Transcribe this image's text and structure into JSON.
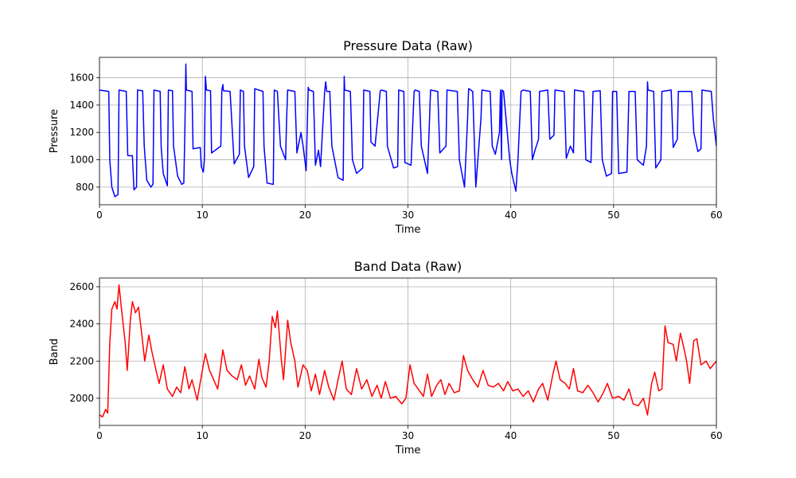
{
  "chart_data": [
    {
      "type": "line",
      "title": "Pressure Data (Raw)",
      "xlabel": "Time",
      "ylabel": "Pressure",
      "color": "#0000ff",
      "grid": true,
      "xlim": [
        0,
        60
      ],
      "ylim": [
        671,
        1749
      ],
      "xticks": [
        0,
        10,
        20,
        30,
        40,
        50,
        60
      ],
      "yticks": [
        800,
        1000,
        1200,
        1400,
        1600
      ],
      "x": [
        0,
        0.9,
        1.0,
        1.2,
        1.5,
        1.8,
        1.9,
        2.6,
        2.75,
        3.2,
        3.35,
        3.6,
        3.7,
        4.2,
        4.35,
        4.6,
        5.0,
        5.2,
        5.3,
        5.9,
        6.0,
        6.2,
        6.6,
        6.7,
        7.1,
        7.2,
        7.6,
        8.0,
        8.2,
        8.3,
        8.4,
        8.45,
        9.0,
        9.1,
        9.8,
        9.9,
        10.1,
        10.2,
        10.3,
        10.4,
        10.8,
        10.9,
        11.8,
        11.9,
        12.0,
        12.05,
        12.7,
        13.1,
        13.6,
        13.7,
        14.0,
        14.1,
        14.5,
        15.0,
        15.1,
        15.9,
        16.0,
        16.3,
        16.9,
        17.0,
        17.3,
        17.6,
        18.1,
        18.2,
        18.3,
        19.0,
        19.2,
        19.6,
        19.8,
        20.1,
        20.3,
        20.4,
        20.8,
        21.0,
        21.3,
        21.5,
        21.9,
        22.0,
        22.1,
        22.4,
        22.6,
        23.2,
        23.7,
        23.8,
        23.85,
        24.4,
        24.6,
        25.0,
        25.6,
        25.7,
        26.3,
        26.4,
        26.8,
        27.3,
        27.4,
        27.9,
        28.0,
        28.6,
        29.0,
        29.1,
        29.6,
        29.7,
        30.3,
        30.6,
        30.7,
        31.1,
        31.3,
        31.9,
        32.1,
        32.2,
        32.9,
        33.1,
        33.7,
        33.8,
        34.8,
        35.0,
        35.5,
        35.8,
        35.9,
        36.3,
        36.6,
        37.1,
        37.2,
        38.0,
        38.2,
        38.5,
        38.9,
        39.0,
        39.1,
        39.15,
        39.3,
        39.9,
        40.1,
        40.5,
        40.7,
        41.0,
        41.2,
        41.9,
        42.1,
        42.4,
        42.7,
        42.8,
        43.6,
        43.8,
        44.2,
        44.3,
        45.2,
        45.4,
        45.8,
        46.1,
        46.2,
        47.1,
        47.3,
        47.8,
        48.0,
        48.7,
        48.9,
        49.3,
        49.8,
        49.9,
        50.3,
        50.5,
        51.3,
        51.5,
        52.1,
        52.3,
        52.9,
        53.2,
        53.3,
        53.35,
        53.9,
        54.1,
        54.6,
        54.7,
        55.6,
        55.8,
        56.2,
        56.3,
        57.6,
        57.8,
        58.2,
        58.5,
        58.6,
        59.5,
        59.7,
        60
      ],
      "values": [
        1510,
        1500,
        1000,
        800,
        730,
        745,
        1510,
        1500,
        1030,
        1030,
        780,
        800,
        1510,
        1505,
        1100,
        850,
        800,
        820,
        1510,
        1500,
        1090,
        900,
        810,
        1510,
        1505,
        1100,
        880,
        820,
        830,
        1200,
        1700,
        1510,
        1500,
        1080,
        1090,
        950,
        910,
        1000,
        1610,
        1510,
        1505,
        1050,
        1100,
        1510,
        1550,
        1505,
        1500,
        970,
        1040,
        1510,
        1500,
        1100,
        870,
        950,
        1520,
        1500,
        1100,
        830,
        820,
        1510,
        1500,
        1100,
        1000,
        1300,
        1510,
        1500,
        1050,
        1200,
        1100,
        920,
        1530,
        1510,
        1500,
        960,
        1070,
        950,
        1500,
        1570,
        1500,
        1500,
        1100,
        870,
        850,
        1610,
        1510,
        1500,
        1000,
        900,
        940,
        1510,
        1500,
        1130,
        1100,
        1500,
        1510,
        1500,
        1100,
        940,
        950,
        1510,
        1500,
        980,
        960,
        1500,
        1510,
        1500,
        1100,
        900,
        1300,
        1510,
        1500,
        1050,
        1100,
        1510,
        1500,
        1000,
        800,
        1300,
        1520,
        1500,
        800,
        1300,
        1510,
        1500,
        1100,
        1040,
        1200,
        1510,
        1000,
        1510,
        1500,
        1000,
        900,
        770,
        1000,
        1500,
        1510,
        1500,
        1000,
        1080,
        1150,
        1500,
        1510,
        1150,
        1180,
        1510,
        1500,
        1010,
        1100,
        1050,
        1510,
        1500,
        1000,
        980,
        1500,
        1505,
        1000,
        880,
        900,
        1500,
        1500,
        900,
        910,
        1500,
        1500,
        1000,
        960,
        1100,
        1570,
        1510,
        1500,
        940,
        1000,
        1500,
        1510,
        1090,
        1150,
        1500,
        1500,
        1200,
        1060,
        1080,
        1510,
        1500,
        1300,
        1100
      ]
    },
    {
      "type": "line",
      "title": "Band Data (Raw)",
      "xlabel": "Time",
      "ylabel": "Band",
      "color": "#ff0000",
      "grid": true,
      "xlim": [
        0,
        60
      ],
      "ylim": [
        1854,
        2647
      ],
      "xticks": [
        0,
        10,
        20,
        30,
        40,
        50,
        60
      ],
      "yticks": [
        2000,
        2200,
        2400,
        2600
      ],
      "x": [
        0,
        0.3,
        0.6,
        0.8,
        1.0,
        1.2,
        1.5,
        1.7,
        1.9,
        2.1,
        2.5,
        2.7,
        3.0,
        3.2,
        3.5,
        3.8,
        4.1,
        4.4,
        4.8,
        5.1,
        5.5,
        5.8,
        6.2,
        6.6,
        7.1,
        7.5,
        7.9,
        8.3,
        8.7,
        9.0,
        9.5,
        10.0,
        10.3,
        10.7,
        11.1,
        11.5,
        12.0,
        12.4,
        12.9,
        13.4,
        13.8,
        14.2,
        14.6,
        15.1,
        15.5,
        15.8,
        16.2,
        16.5,
        16.8,
        17.1,
        17.3,
        17.7,
        17.9,
        18.3,
        18.6,
        19.0,
        19.3,
        19.8,
        20.2,
        20.6,
        21.0,
        21.4,
        21.9,
        22.3,
        22.8,
        23.2,
        23.6,
        24.0,
        24.5,
        25.0,
        25.5,
        26.0,
        26.5,
        27.0,
        27.4,
        27.8,
        28.3,
        28.8,
        29.4,
        29.8,
        30.2,
        30.6,
        31.0,
        31.5,
        31.9,
        32.3,
        32.8,
        33.2,
        33.6,
        34.0,
        34.5,
        35.0,
        35.4,
        35.8,
        36.3,
        36.8,
        37.3,
        37.8,
        38.3,
        38.8,
        39.3,
        39.7,
        40.2,
        40.7,
        41.2,
        41.7,
        42.2,
        42.7,
        43.1,
        43.6,
        44.1,
        44.4,
        44.8,
        45.3,
        45.7,
        46.1,
        46.5,
        47.0,
        47.5,
        48.0,
        48.5,
        49.0,
        49.4,
        49.9,
        50.5,
        51.0,
        51.5,
        51.9,
        52.4,
        52.9,
        53.3,
        53.7,
        54.0,
        54.4,
        54.7,
        55.0,
        55.3,
        55.8,
        56.1,
        56.5,
        56.8,
        57.1,
        57.4,
        57.8,
        58.1,
        58.5,
        59.0,
        59.4,
        60
      ],
      "values": [
        1910,
        1900,
        1940,
        1920,
        2300,
        2480,
        2520,
        2480,
        2610,
        2500,
        2300,
        2150,
        2420,
        2520,
        2460,
        2490,
        2350,
        2200,
        2340,
        2250,
        2150,
        2080,
        2180,
        2050,
        2010,
        2060,
        2030,
        2170,
        2050,
        2100,
        1990,
        2150,
        2240,
        2150,
        2100,
        2050,
        2260,
        2150,
        2120,
        2100,
        2180,
        2070,
        2120,
        2050,
        2210,
        2110,
        2060,
        2200,
        2440,
        2380,
        2470,
        2200,
        2100,
        2420,
        2300,
        2200,
        2060,
        2180,
        2150,
        2040,
        2130,
        2020,
        2150,
        2060,
        1990,
        2100,
        2200,
        2050,
        2020,
        2160,
        2050,
        2100,
        2010,
        2070,
        2000,
        2090,
        2000,
        2010,
        1970,
        2000,
        2180,
        2080,
        2050,
        2010,
        2130,
        2010,
        2070,
        2100,
        2020,
        2080,
        2030,
        2040,
        2230,
        2150,
        2100,
        2060,
        2150,
        2070,
        2060,
        2080,
        2040,
        2090,
        2040,
        2050,
        2010,
        2040,
        1980,
        2050,
        2080,
        1990,
        2130,
        2200,
        2100,
        2080,
        2050,
        2160,
        2040,
        2030,
        2070,
        2030,
        1980,
        2030,
        2080,
        2000,
        2010,
        1990,
        2050,
        1970,
        1960,
        2000,
        1910,
        2080,
        2140,
        2040,
        2050,
        2390,
        2300,
        2290,
        2200,
        2350,
        2280,
        2200,
        2080,
        2310,
        2320,
        2180,
        2200,
        2160,
        2200
      ]
    }
  ]
}
